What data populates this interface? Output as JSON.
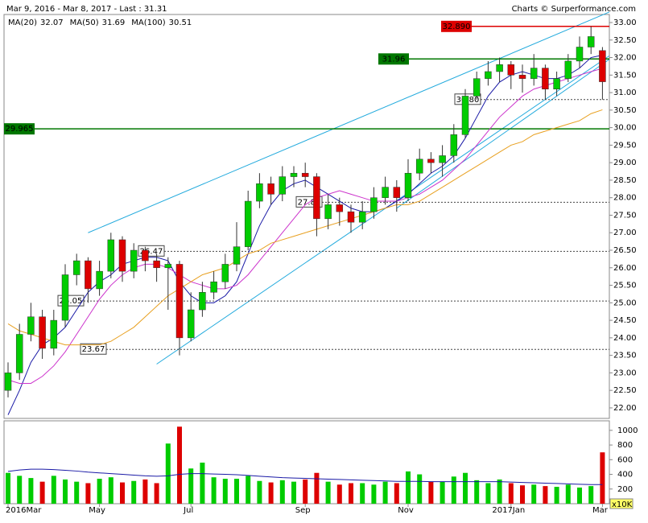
{
  "header": {
    "period": "Mar 9, 2016 - Mar 8, 2017 - Last : 31.31",
    "credit": "Charts © Surperformance.com"
  },
  "chart_data": {
    "type": "candlestick",
    "categories": [
      "2016Mar",
      null,
      null,
      null,
      null,
      null,
      null,
      null,
      "May",
      null,
      null,
      null,
      null,
      null,
      null,
      null,
      "Jul",
      null,
      null,
      null,
      null,
      null,
      null,
      null,
      null,
      null,
      "Sep",
      null,
      null,
      null,
      null,
      null,
      null,
      null,
      null,
      "Nov",
      null,
      null,
      null,
      null,
      null,
      null,
      null,
      null,
      "2017Jan",
      null,
      null,
      null,
      null,
      null,
      null,
      null,
      "Mar"
    ],
    "open": [
      22.5,
      23.0,
      24.1,
      24.6,
      23.7,
      24.5,
      25.8,
      26.2,
      25.4,
      25.9,
      26.8,
      25.9,
      26.5,
      26.2,
      26.0,
      26.1,
      24.0,
      24.8,
      25.3,
      25.6,
      26.1,
      26.6,
      27.9,
      28.4,
      28.1,
      28.6,
      28.7,
      28.6,
      27.4,
      27.8,
      27.6,
      27.3,
      27.6,
      28.0,
      28.3,
      28.0,
      28.7,
      29.1,
      29.0,
      29.2,
      29.8,
      30.9,
      31.4,
      31.6,
      31.8,
      31.5,
      31.4,
      31.7,
      31.1,
      31.4,
      31.9,
      32.3,
      32.2
    ],
    "high": [
      23.3,
      24.4,
      25.0,
      24.8,
      24.8,
      26.1,
      26.4,
      26.3,
      26.2,
      27.0,
      26.9,
      26.7,
      26.6,
      26.4,
      26.3,
      26.2,
      25.3,
      25.6,
      25.9,
      26.4,
      27.3,
      28.2,
      28.7,
      28.6,
      28.9,
      28.9,
      29.0,
      28.7,
      28.1,
      28.0,
      27.8,
      27.9,
      28.3,
      28.6,
      28.5,
      29.1,
      29.4,
      29.3,
      29.5,
      30.1,
      31.1,
      31.6,
      31.9,
      32.0,
      31.9,
      31.8,
      32.1,
      31.8,
      31.6,
      32.1,
      32.6,
      32.89,
      32.3
    ],
    "low": [
      22.3,
      22.8,
      23.9,
      23.4,
      23.5,
      24.3,
      25.5,
      25.0,
      25.2,
      25.7,
      25.6,
      25.7,
      25.9,
      25.6,
      24.8,
      23.5,
      23.9,
      24.6,
      25.1,
      25.4,
      25.9,
      26.5,
      27.7,
      27.8,
      27.9,
      28.3,
      28.3,
      26.9,
      27.1,
      27.2,
      27.0,
      27.1,
      27.4,
      27.8,
      27.6,
      27.9,
      28.5,
      28.7,
      28.6,
      29.0,
      29.7,
      30.8,
      31.2,
      31.3,
      31.1,
      31.0,
      31.2,
      30.8,
      30.9,
      31.3,
      31.7,
      32.1,
      30.8
    ],
    "close": [
      23.0,
      24.1,
      24.6,
      23.7,
      24.5,
      25.8,
      26.2,
      25.4,
      25.9,
      26.8,
      25.9,
      26.5,
      26.2,
      26.0,
      26.1,
      24.0,
      24.8,
      25.3,
      25.6,
      26.1,
      26.6,
      27.9,
      28.4,
      28.1,
      28.6,
      28.7,
      28.6,
      27.4,
      27.8,
      27.6,
      27.3,
      27.6,
      28.0,
      28.3,
      28.0,
      28.7,
      29.1,
      29.0,
      29.2,
      29.8,
      30.9,
      31.4,
      31.6,
      31.8,
      31.5,
      31.4,
      31.7,
      31.1,
      31.4,
      31.9,
      32.3,
      32.6,
      31.31
    ],
    "up_color": "#00cc00",
    "down_color": "#dd0000",
    "series": [
      {
        "name": "MA(20)",
        "color": "#1a1aa6",
        "last": 32.07,
        "values": [
          21.8,
          22.5,
          23.3,
          23.8,
          24.0,
          24.3,
          24.8,
          25.3,
          25.6,
          25.8,
          26.1,
          26.2,
          26.3,
          26.3,
          26.2,
          25.6,
          25.2,
          25.0,
          25.0,
          25.2,
          25.6,
          26.4,
          27.2,
          27.8,
          28.2,
          28.4,
          28.5,
          28.3,
          28.1,
          27.9,
          27.7,
          27.6,
          27.6,
          27.7,
          27.9,
          28.1,
          28.4,
          28.7,
          28.9,
          29.2,
          29.7,
          30.3,
          30.9,
          31.3,
          31.5,
          31.6,
          31.5,
          31.4,
          31.4,
          31.5,
          31.7,
          32.0,
          32.07
        ]
      },
      {
        "name": "MA(50)",
        "color": "#cc33cc",
        "last": 31.69,
        "values": [
          22.8,
          22.7,
          22.7,
          22.9,
          23.2,
          23.6,
          24.1,
          24.6,
          25.1,
          25.5,
          25.8,
          26.0,
          26.1,
          26.1,
          26.0,
          25.8,
          25.6,
          25.5,
          25.4,
          25.4,
          25.5,
          25.8,
          26.2,
          26.6,
          27.0,
          27.4,
          27.8,
          28.0,
          28.1,
          28.2,
          28.1,
          28.0,
          27.9,
          27.9,
          27.9,
          28.0,
          28.1,
          28.3,
          28.5,
          28.8,
          29.1,
          29.5,
          29.9,
          30.3,
          30.6,
          30.9,
          31.1,
          31.2,
          31.3,
          31.4,
          31.5,
          31.6,
          31.69
        ]
      },
      {
        "name": "MA(100)",
        "color": "#e8a020",
        "last": 30.51,
        "values": [
          24.4,
          24.2,
          24.1,
          24.0,
          23.9,
          23.8,
          23.8,
          23.8,
          23.8,
          23.9,
          24.1,
          24.3,
          24.6,
          24.9,
          25.2,
          25.4,
          25.6,
          25.8,
          25.9,
          26.0,
          26.2,
          26.4,
          26.5,
          26.7,
          26.8,
          26.9,
          27.0,
          27.1,
          27.2,
          27.3,
          27.4,
          27.5,
          27.6,
          27.7,
          27.8,
          27.8,
          27.9,
          28.1,
          28.3,
          28.5,
          28.7,
          28.9,
          29.1,
          29.3,
          29.5,
          29.6,
          29.8,
          29.9,
          30.0,
          30.1,
          30.2,
          30.4,
          30.51
        ]
      }
    ],
    "ylim": [
      21.7,
      33.23
    ],
    "yticks": [
      {
        "value": 22,
        "label": "22.00"
      },
      {
        "value": 22.5,
        "label": "22.50"
      },
      {
        "value": 23,
        "label": "23.00"
      },
      {
        "value": 23.5,
        "label": "23.50"
      },
      {
        "value": 24,
        "label": "24.00"
      },
      {
        "value": 24.5,
        "label": "24.50"
      },
      {
        "value": 25,
        "label": "25.00"
      },
      {
        "value": 25.5,
        "label": "25.50"
      },
      {
        "value": 26,
        "label": "26.00"
      },
      {
        "value": 26.5,
        "label": "26.50"
      },
      {
        "value": 27,
        "label": "27.00"
      },
      {
        "value": 27.5,
        "label": "27.50"
      },
      {
        "value": 28,
        "label": "28.00"
      },
      {
        "value": 28.5,
        "label": "28.50"
      },
      {
        "value": 29,
        "label": "29.00"
      },
      {
        "value": 29.5,
        "label": "29.50"
      },
      {
        "value": 30,
        "label": "30.00"
      },
      {
        "value": 30.5,
        "label": "30.50"
      },
      {
        "value": 31,
        "label": "31.00"
      },
      {
        "value": 31.5,
        "label": "31.50"
      },
      {
        "value": 32,
        "label": "32.00"
      },
      {
        "value": 32.5,
        "label": "32.50"
      },
      {
        "value": 33,
        "label": "33.00"
      }
    ],
    "solid_levels": [
      {
        "value": 32.89,
        "label": "32.890",
        "color": "#dd0000"
      },
      {
        "value": 31.96,
        "label": "31.96",
        "color": "#007700"
      },
      {
        "value": 29.965,
        "label": "29.965",
        "color": "#007700"
      }
    ],
    "dashed_levels": [
      {
        "value": 30.8,
        "label": "30.80"
      },
      {
        "value": 27.87,
        "label": "27.87"
      },
      {
        "value": 26.47,
        "label": "26.47"
      },
      {
        "value": 25.05,
        "label": "25.05"
      },
      {
        "value": 23.67,
        "label": "23.67"
      }
    ],
    "trendlines": [
      {
        "from": [
          7,
          27.0
        ],
        "to": [
          52.6,
          33.3
        ]
      },
      {
        "from": [
          13,
          23.25
        ],
        "to": [
          52.6,
          32.05
        ]
      },
      {
        "from": [
          34,
          27.7
        ],
        "to": [
          52.6,
          31.95
        ]
      }
    ],
    "trend_color": "#22aadd",
    "volume": {
      "unit": "x10K",
      "values": [
        420,
        380,
        350,
        300,
        380,
        330,
        300,
        280,
        340,
        360,
        290,
        310,
        330,
        280,
        820,
        1050,
        480,
        560,
        360,
        340,
        340,
        380,
        310,
        290,
        320,
        300,
        330,
        420,
        300,
        260,
        280,
        280,
        260,
        300,
        280,
        440,
        400,
        300,
        300,
        370,
        420,
        320,
        280,
        330,
        280,
        250,
        260,
        240,
        230,
        260,
        220,
        240,
        700
      ],
      "ma": [
        440,
        460,
        470,
        470,
        465,
        455,
        445,
        430,
        420,
        410,
        400,
        390,
        380,
        375,
        380,
        400,
        410,
        410,
        405,
        400,
        395,
        385,
        375,
        365,
        355,
        350,
        345,
        340,
        335,
        330,
        325,
        320,
        315,
        310,
        305,
        305,
        305,
        300,
        300,
        300,
        300,
        300,
        300,
        300,
        295,
        290,
        285,
        280,
        275,
        270,
        265,
        260,
        260
      ],
      "ma_color": "#1a1aa6",
      "ylim": [
        0,
        1130
      ],
      "yticks": [
        200,
        400,
        600,
        800,
        1000
      ]
    }
  }
}
